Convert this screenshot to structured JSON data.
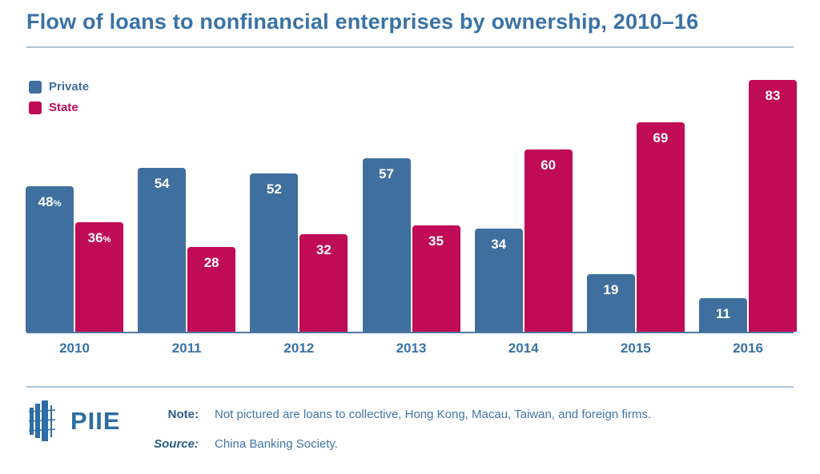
{
  "title": "Flow of loans to nonfinancial enterprises by ownership, 2010–16",
  "legend": [
    {
      "label": "Private",
      "color": "#3F6F9E"
    },
    {
      "label": "State",
      "color": "#C00B56"
    }
  ],
  "chart_data": {
    "type": "bar",
    "title": "Flow of loans to nonfinancial enterprises by ownership, 2010–16",
    "categories": [
      "2010",
      "2011",
      "2012",
      "2013",
      "2014",
      "2015",
      "2016"
    ],
    "series": [
      {
        "name": "Private",
        "color": "#3F6F9E",
        "values": [
          48,
          54,
          52,
          57,
          34,
          19,
          11
        ],
        "labels": [
          "48%",
          "54",
          "52",
          "57",
          "34",
          "19",
          "11"
        ]
      },
      {
        "name": "State",
        "color": "#C00B56",
        "values": [
          36,
          28,
          32,
          35,
          60,
          69,
          83
        ],
        "labels": [
          "36%",
          "28",
          "32",
          "35",
          "60",
          "69",
          "83"
        ]
      }
    ],
    "unit": "percent share",
    "ylim": [
      0,
      90
    ],
    "grid": false,
    "axis_line_color": "#4E7AA3",
    "bar_label_color": "#FFFFFF",
    "legend_position": "top-left"
  },
  "footer": {
    "logo_text": "PIIE",
    "note_label": "Note:",
    "note": "Not pictured are loans to collective, Hong Kong, Macau, Taiwan, and foreign firms.",
    "source_label": "Source:",
    "source": "China Banking Society."
  }
}
